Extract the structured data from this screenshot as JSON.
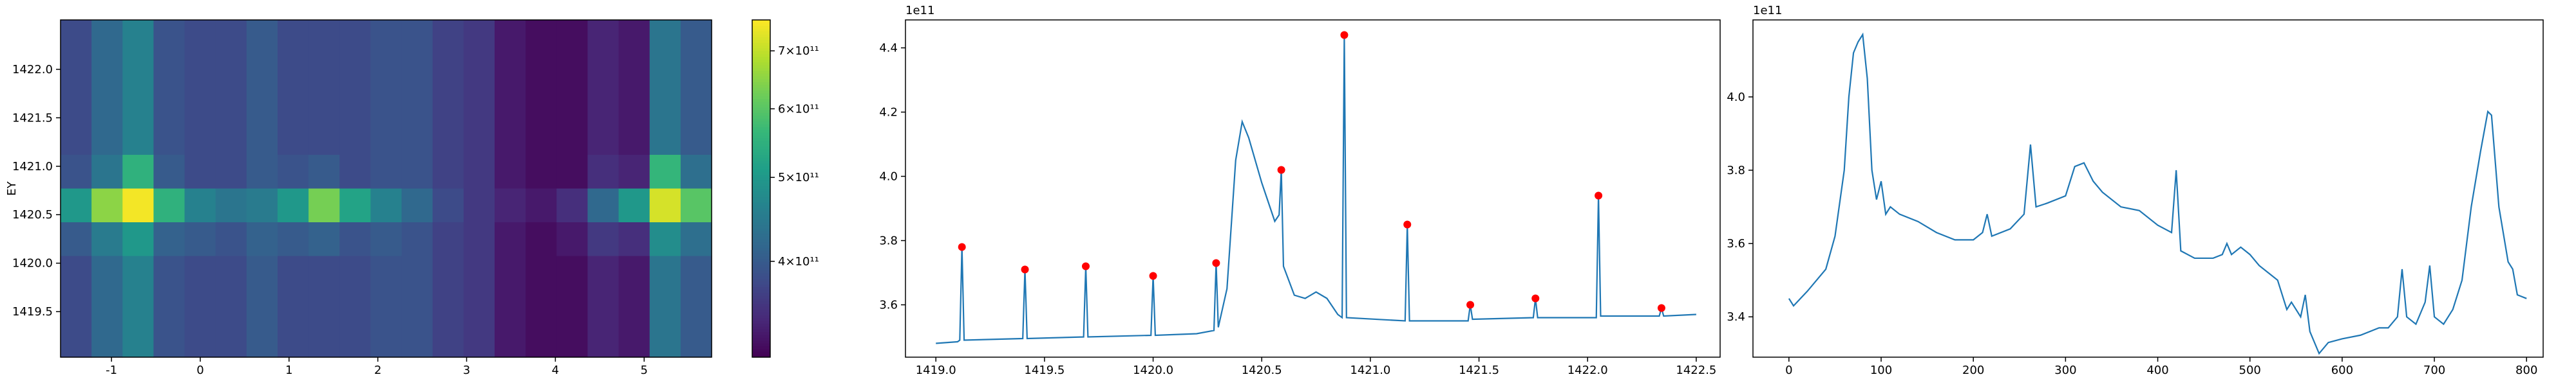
{
  "chart_data": [
    {
      "type": "heatmap",
      "ylabel": "EY",
      "xlim": [
        -1.574,
        5.76
      ],
      "ylim": [
        1419.03,
        1422.51
      ],
      "xticks": [
        -1,
        0,
        1,
        2,
        3,
        4,
        5
      ],
      "yticks": [
        1419.5,
        {
          "value": 1420,
          "label": "1420.0"
        },
        1420.5,
        {
          "value": 1421,
          "label": "1421.0"
        },
        1421.5,
        {
          "value": 1422,
          "label": "1422.0"
        }
      ],
      "colormap": "viridis",
      "color_scale": "log",
      "clim": [
        310000000000,
        760000000000
      ],
      "colorbar_ticks": [
        {
          "value": 400000000000,
          "label": "4×10¹¹"
        },
        {
          "value": 500000000000,
          "label": "5×10¹¹"
        },
        {
          "value": 600000000000,
          "label": "6×10¹¹"
        },
        {
          "value": 700000000000,
          "label": "7×10¹¹"
        }
      ],
      "values": [
        [
          380000000000.0,
          420000000000.0,
          460000000000.0,
          390000000000.0,
          380000000000.0,
          380000000000.0,
          400000000000.0,
          380000000000.0,
          380000000000.0,
          380000000000.0,
          390000000000.0,
          390000000000.0,
          370000000000.0,
          360000000000.0,
          330000000000.0,
          320000000000.0,
          320000000000.0,
          340000000000.0,
          330000000000.0,
          440000000000.0,
          400000000000.0
        ],
        [
          380000000000.0,
          420000000000.0,
          460000000000.0,
          390000000000.0,
          380000000000.0,
          380000000000.0,
          400000000000.0,
          380000000000.0,
          380000000000.0,
          380000000000.0,
          390000000000.0,
          390000000000.0,
          370000000000.0,
          360000000000.0,
          330000000000.0,
          320000000000.0,
          320000000000.0,
          340000000000.0,
          330000000000.0,
          440000000000.0,
          400000000000.0
        ],
        [
          380000000000.0,
          420000000000.0,
          460000000000.0,
          390000000000.0,
          380000000000.0,
          380000000000.0,
          400000000000.0,
          380000000000.0,
          380000000000.0,
          380000000000.0,
          390000000000.0,
          390000000000.0,
          370000000000.0,
          360000000000.0,
          330000000000.0,
          320000000000.0,
          320000000000.0,
          340000000000.0,
          330000000000.0,
          440000000000.0,
          400000000000.0
        ],
        [
          380000000000.0,
          420000000000.0,
          460000000000.0,
          390000000000.0,
          380000000000.0,
          380000000000.0,
          400000000000.0,
          380000000000.0,
          380000000000.0,
          380000000000.0,
          390000000000.0,
          390000000000.0,
          370000000000.0,
          360000000000.0,
          330000000000.0,
          320000000000.0,
          320000000000.0,
          340000000000.0,
          330000000000.0,
          440000000000.0,
          400000000000.0
        ],
        [
          390000000000.0,
          440000000000.0,
          550000000000.0,
          400000000000.0,
          380000000000.0,
          380000000000.0,
          400000000000.0,
          390000000000.0,
          400000000000.0,
          380000000000.0,
          390000000000.0,
          390000000000.0,
          370000000000.0,
          360000000000.0,
          330000000000.0,
          320000000000.0,
          320000000000.0,
          350000000000.0,
          340000000000.0,
          560000000000.0,
          430000000000.0
        ],
        [
          500000000000.0,
          650000000000.0,
          750000000000.0,
          550000000000.0,
          460000000000.0,
          440000000000.0,
          450000000000.0,
          500000000000.0,
          630000000000.0,
          520000000000.0,
          460000000000.0,
          420000000000.0,
          380000000000.0,
          360000000000.0,
          340000000000.0,
          330000000000.0,
          350000000000.0,
          420000000000.0,
          500000000000.0,
          720000000000.0,
          600000000000.0
        ],
        [
          400000000000.0,
          450000000000.0,
          500000000000.0,
          410000000000.0,
          400000000000.0,
          390000000000.0,
          410000000000.0,
          400000000000.0,
          410000000000.0,
          390000000000.0,
          400000000000.0,
          390000000000.0,
          370000000000.0,
          360000000000.0,
          330000000000.0,
          320000000000.0,
          330000000000.0,
          360000000000.0,
          350000000000.0,
          480000000000.0,
          430000000000.0
        ],
        [
          380000000000.0,
          420000000000.0,
          460000000000.0,
          390000000000.0,
          380000000000.0,
          380000000000.0,
          400000000000.0,
          380000000000.0,
          380000000000.0,
          380000000000.0,
          390000000000.0,
          390000000000.0,
          370000000000.0,
          360000000000.0,
          330000000000.0,
          320000000000.0,
          320000000000.0,
          340000000000.0,
          330000000000.0,
          440000000000.0,
          400000000000.0
        ],
        [
          380000000000.0,
          420000000000.0,
          460000000000.0,
          390000000000.0,
          380000000000.0,
          380000000000.0,
          400000000000.0,
          380000000000.0,
          380000000000.0,
          380000000000.0,
          390000000000.0,
          390000000000.0,
          370000000000.0,
          360000000000.0,
          330000000000.0,
          320000000000.0,
          320000000000.0,
          340000000000.0,
          330000000000.0,
          440000000000.0,
          400000000000.0
        ],
        [
          380000000000.0,
          420000000000.0,
          460000000000.0,
          390000000000.0,
          380000000000.0,
          380000000000.0,
          400000000000.0,
          380000000000.0,
          380000000000.0,
          380000000000.0,
          390000000000.0,
          390000000000.0,
          370000000000.0,
          360000000000.0,
          330000000000.0,
          320000000000.0,
          320000000000.0,
          340000000000.0,
          330000000000.0,
          440000000000.0,
          400000000000.0
        ]
      ]
    },
    {
      "type": "line",
      "y_offset_text": "1e11",
      "color": "#1f77b4",
      "xlim": [
        1418.86,
        1422.61
      ],
      "ylim": [
        3.437,
        4.487
      ],
      "xticks": [
        {
          "value": 1419,
          "label": "1419.0"
        },
        1419.5,
        {
          "value": 1420,
          "label": "1420.0"
        },
        1420.5,
        {
          "value": 1421,
          "label": "1421.0"
        },
        1421.5,
        {
          "value": 1422,
          "label": "1422.0"
        },
        1422.5
      ],
      "yticks": [
        3.6,
        3.8,
        {
          "value": 4,
          "label": "4.0"
        },
        4.2,
        4.4
      ],
      "x": [
        1419.0,
        1419.1,
        1419.11,
        1419.12,
        1419.13,
        1419.4,
        1419.41,
        1419.42,
        1419.68,
        1419.69,
        1419.7,
        1419.99,
        1420.0,
        1420.01,
        1420.2,
        1420.28,
        1420.29,
        1420.3,
        1420.34,
        1420.38,
        1420.41,
        1420.44,
        1420.5,
        1420.56,
        1420.58,
        1420.59,
        1420.6,
        1420.65,
        1420.7,
        1420.75,
        1420.8,
        1420.85,
        1420.87,
        1420.88,
        1420.89,
        1421.16,
        1421.17,
        1421.18,
        1421.45,
        1421.46,
        1421.47,
        1421.75,
        1421.76,
        1421.77,
        1422.04,
        1422.05,
        1422.06,
        1422.33,
        1422.34,
        1422.35,
        1422.5
      ],
      "values": [
        3.48,
        3.485,
        3.49,
        3.78,
        3.49,
        3.495,
        3.71,
        3.495,
        3.5,
        3.72,
        3.5,
        3.505,
        3.69,
        3.505,
        3.51,
        3.52,
        3.73,
        3.53,
        3.65,
        4.05,
        4.17,
        4.12,
        3.98,
        3.86,
        3.88,
        4.02,
        3.72,
        3.63,
        3.62,
        3.64,
        3.62,
        3.57,
        3.56,
        4.44,
        3.56,
        3.55,
        3.85,
        3.55,
        3.55,
        3.6,
        3.555,
        3.56,
        3.62,
        3.56,
        3.56,
        3.94,
        3.565,
        3.565,
        3.59,
        3.565,
        3.57
      ],
      "peaks_color": "red",
      "peaks_x": [
        1419.12,
        1419.41,
        1419.69,
        1420.0,
        1420.29,
        1420.59,
        1420.88,
        1421.17,
        1421.46,
        1421.76,
        1422.05,
        1422.34
      ],
      "peaks_values": [
        3.78,
        3.71,
        3.72,
        3.69,
        3.73,
        4.02,
        4.44,
        3.85,
        3.6,
        3.62,
        3.94,
        3.59
      ]
    },
    {
      "type": "line",
      "y_offset_text": "1e11",
      "color": "#1f77b4",
      "xlim": [
        -39,
        818
      ],
      "ylim": [
        3.29,
        4.21
      ],
      "xticks": [
        0,
        100,
        200,
        300,
        400,
        500,
        600,
        700,
        800
      ],
      "yticks": [
        3.4,
        3.6,
        3.8,
        {
          "value": 4,
          "label": "4.0"
        }
      ],
      "x": [
        0,
        5,
        20,
        40,
        50,
        60,
        65,
        70,
        75,
        80,
        85,
        90,
        95,
        100,
        105,
        110,
        120,
        140,
        160,
        180,
        200,
        210,
        215,
        220,
        240,
        255,
        262,
        268,
        280,
        300,
        310,
        320,
        330,
        340,
        360,
        380,
        400,
        415,
        420,
        425,
        440,
        460,
        470,
        475,
        480,
        490,
        500,
        510,
        520,
        530,
        540,
        545,
        555,
        560,
        565,
        575,
        585,
        600,
        620,
        640,
        650,
        660,
        665,
        670,
        680,
        690,
        695,
        700,
        710,
        720,
        730,
        740,
        750,
        758,
        762,
        770,
        780,
        785,
        790,
        800
      ],
      "values": [
        3.45,
        3.43,
        3.47,
        3.53,
        3.62,
        3.8,
        4.0,
        4.12,
        4.15,
        4.17,
        4.05,
        3.8,
        3.72,
        3.77,
        3.68,
        3.7,
        3.68,
        3.66,
        3.63,
        3.61,
        3.61,
        3.63,
        3.68,
        3.62,
        3.64,
        3.68,
        3.87,
        3.7,
        3.71,
        3.73,
        3.81,
        3.82,
        3.77,
        3.74,
        3.7,
        3.69,
        3.65,
        3.63,
        3.8,
        3.58,
        3.56,
        3.56,
        3.57,
        3.6,
        3.57,
        3.59,
        3.57,
        3.54,
        3.52,
        3.5,
        3.42,
        3.44,
        3.4,
        3.46,
        3.36,
        3.3,
        3.33,
        3.34,
        3.35,
        3.37,
        3.37,
        3.4,
        3.53,
        3.4,
        3.38,
        3.44,
        3.54,
        3.4,
        3.38,
        3.42,
        3.5,
        3.7,
        3.85,
        3.96,
        3.95,
        3.7,
        3.55,
        3.53,
        3.46,
        3.45
      ]
    }
  ]
}
